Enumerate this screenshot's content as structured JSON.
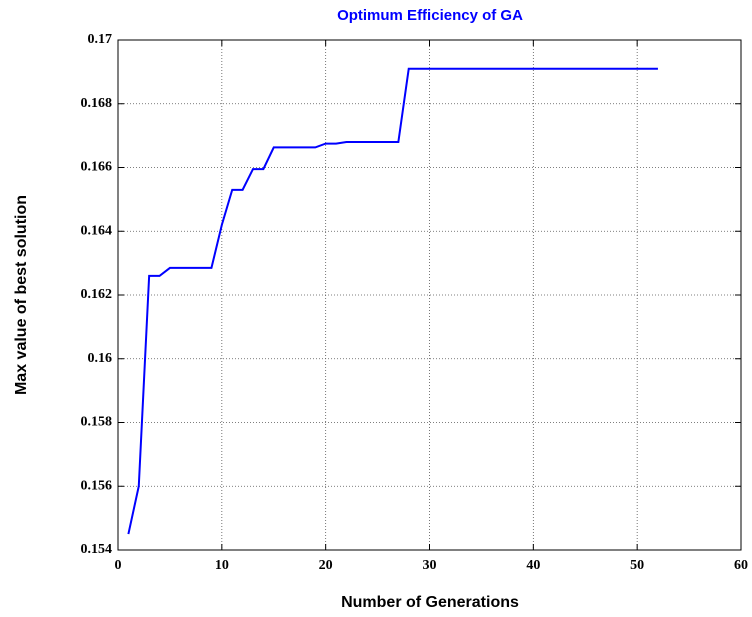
{
  "chart_data": {
    "type": "line",
    "title": "Optimum Efficiency of GA",
    "xlabel": "Number of Generations",
    "ylabel": "Max value of best solution",
    "x": [
      1,
      2,
      3,
      4,
      5,
      6,
      7,
      8,
      9,
      10,
      11,
      12,
      13,
      14,
      15,
      16,
      17,
      18,
      19,
      20,
      21,
      22,
      23,
      24,
      25,
      26,
      27,
      28,
      29,
      30,
      31,
      32,
      33,
      34,
      35,
      36,
      37,
      38,
      39,
      40,
      41,
      42,
      43,
      44,
      45,
      46,
      47,
      48,
      49,
      50,
      51,
      52
    ],
    "series": [
      {
        "name": "Max value of best solution",
        "color": "#0000ff",
        "values": [
          0.1545,
          0.156,
          0.1626,
          0.1626,
          0.16285,
          0.16285,
          0.16285,
          0.16285,
          0.16285,
          0.1642,
          0.1653,
          0.1653,
          0.16595,
          0.16595,
          0.16663,
          0.16663,
          0.16663,
          0.16663,
          0.16663,
          0.16675,
          0.16675,
          0.1668,
          0.1668,
          0.1668,
          0.1668,
          0.1668,
          0.1668,
          0.1691,
          0.1691,
          0.1691,
          0.1691,
          0.1691,
          0.1691,
          0.1691,
          0.1691,
          0.1691,
          0.1691,
          0.1691,
          0.1691,
          0.1691,
          0.1691,
          0.1691,
          0.1691,
          0.1691,
          0.1691,
          0.1691,
          0.1691,
          0.1691,
          0.1691,
          0.1691,
          0.1691,
          0.1691
        ]
      }
    ],
    "xlim": [
      0,
      60
    ],
    "xticks": [
      0,
      10,
      20,
      30,
      40,
      50,
      60
    ],
    "ylim": [
      0.154,
      0.17
    ],
    "yticks": [
      0.154,
      0.156,
      0.158,
      0.16,
      0.162,
      0.164,
      0.166,
      0.168,
      0.17
    ],
    "grid": true,
    "title_color": "#0000ff"
  }
}
